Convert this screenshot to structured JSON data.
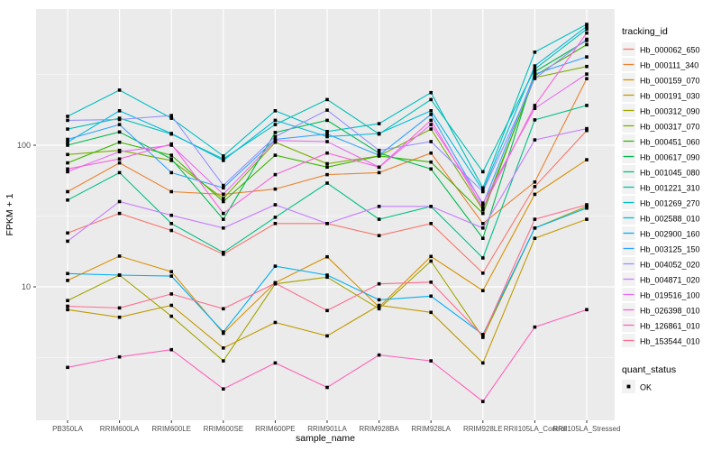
{
  "figure": {
    "background": "#FFFFFF",
    "panel_background": "#EBEBEB",
    "grid_color": "#FFFFFF",
    "axis_tick_text_color": "#4D4D4D",
    "title_text_color": "#000000",
    "point_color": "#000000",
    "legend_key_background": "#F2F2F2"
  },
  "legend": {
    "tracking_title": "tracking_id",
    "quant_title": "quant_status",
    "quant_entries": [
      {
        "label": "OK",
        "shape": "black-square"
      }
    ]
  },
  "chart_data": {
    "type": "line",
    "title": "",
    "xlabel": "sample_name",
    "ylabel": "FPKM + 1",
    "y_scale": "log10",
    "y_ticks": [
      100,
      10
    ],
    "y_minor_ticks": [
      316.2,
      31.62,
      3.162
    ],
    "ylim": [
      1.1,
      950
    ],
    "grid": true,
    "legend_position": "right",
    "point_shape": "square",
    "categories": [
      "PB350LA",
      "RRIM600LA",
      "RRIM600LE",
      "RRIM600SE",
      "RRIM600PE",
      "RRIM901LA",
      "RRIM928BA",
      "RRIM928LA",
      "RRIM928LE",
      "RRII105LA_Control",
      "RRII105LA_Stressed"
    ],
    "series": [
      {
        "name": "Hb_000062_650",
        "color": "#F8766D",
        "values": [
          24,
          33,
          25,
          17,
          28,
          28,
          23,
          28,
          12.5,
          51,
          127
        ]
      },
      {
        "name": "Hb_000111_340",
        "color": "#EA8331",
        "values": [
          47,
          75,
          47,
          45,
          49,
          62,
          64,
          88,
          28,
          55,
          295
        ]
      },
      {
        "name": "Hb_000159_070",
        "color": "#D89000",
        "values": [
          11.1,
          16.5,
          12.8,
          4.7,
          10.7,
          16.3,
          7.2,
          16.4,
          9.4,
          45,
          79
        ]
      },
      {
        "name": "Hb_000191_030",
        "color": "#C09B00",
        "values": [
          6.9,
          6.1,
          7.4,
          3.7,
          5.6,
          4.5,
          7.4,
          6.6,
          2.9,
          22,
          30
        ]
      },
      {
        "name": "Hb_000312_090",
        "color": "#A3A500",
        "values": [
          8.0,
          12.1,
          6.2,
          3.0,
          10.5,
          11.7,
          7.0,
          15.2,
          4.4,
          26,
          37
        ]
      },
      {
        "name": "Hb_000317_070",
        "color": "#7CAE00",
        "values": [
          86,
          92,
          78,
          42,
          105,
          74,
          84,
          130,
          35,
          300,
          360
        ]
      },
      {
        "name": "Hb_000451_060",
        "color": "#39B600",
        "values": [
          75,
          105,
          85,
          40,
          85,
          70,
          84,
          76,
          33,
          310,
          513
        ]
      },
      {
        "name": "Hb_000617_090",
        "color": "#00BB4E",
        "values": [
          100,
          124,
          80,
          30,
          123,
          150,
          88,
          68,
          22,
          330,
          549
        ]
      },
      {
        "name": "Hb_001045_080",
        "color": "#00C087",
        "values": [
          41,
          64,
          28,
          17.5,
          31,
          54,
          30,
          37,
          16,
          151,
          191
        ]
      },
      {
        "name": "Hb_001221_310",
        "color": "#00C0B2",
        "values": [
          130,
          155,
          120,
          80,
          140,
          210,
          120,
          210,
          65,
          345,
          660
        ]
      },
      {
        "name": "Hb_001269_270",
        "color": "#00BFC4",
        "values": [
          160,
          245,
          155,
          84,
          175,
          125,
          142,
          235,
          50,
          454,
          714
        ]
      },
      {
        "name": "Hb_002588_010",
        "color": "#00BAE0",
        "values": [
          105,
          175,
          121,
          78,
          150,
          115,
          121,
          175,
          48,
          363,
          690
        ]
      },
      {
        "name": "Hb_002900_160",
        "color": "#00B0F6",
        "values": [
          12.4,
          12.1,
          11.9,
          4.8,
          14,
          12.1,
          8.1,
          8.6,
          4.6,
          26,
          36
        ]
      },
      {
        "name": "Hb_003125_150",
        "color": "#35A2FF",
        "values": [
          110,
          140,
          64,
          50,
          110,
          120,
          85,
          165,
          38,
          318,
          420
        ]
      },
      {
        "name": "Hb_004052_020",
        "color": "#9590FF",
        "values": [
          150,
          152,
          162,
          52,
          115,
          177,
          92,
          106,
          47,
          296,
          560
        ]
      },
      {
        "name": "Hb_004871_020",
        "color": "#C77CFF",
        "values": [
          21,
          40,
          32,
          26,
          38,
          28,
          37,
          37,
          26,
          109,
          131
        ]
      },
      {
        "name": "Hb_019516_100",
        "color": "#E76BF3",
        "values": [
          65,
          90,
          100,
          45,
          108,
          106,
          70,
          140,
          39,
          182,
          318
        ]
      },
      {
        "name": "Hb_026398_010",
        "color": "#FA62DB",
        "values": [
          68,
          80,
          102,
          33,
          62,
          88,
          70,
          150,
          36,
          191,
          620
        ]
      },
      {
        "name": "Hb_126861_010",
        "color": "#FF62BC",
        "values": [
          2.7,
          3.2,
          3.6,
          1.9,
          2.9,
          1.95,
          3.3,
          3.0,
          1.55,
          5.2,
          6.9
        ]
      },
      {
        "name": "Hb_153544_010",
        "color": "#FF6C90",
        "values": [
          7.3,
          7.1,
          8.9,
          7.0,
          10.6,
          6.8,
          10.5,
          10.8,
          4.5,
          30,
          38
        ]
      }
    ]
  }
}
